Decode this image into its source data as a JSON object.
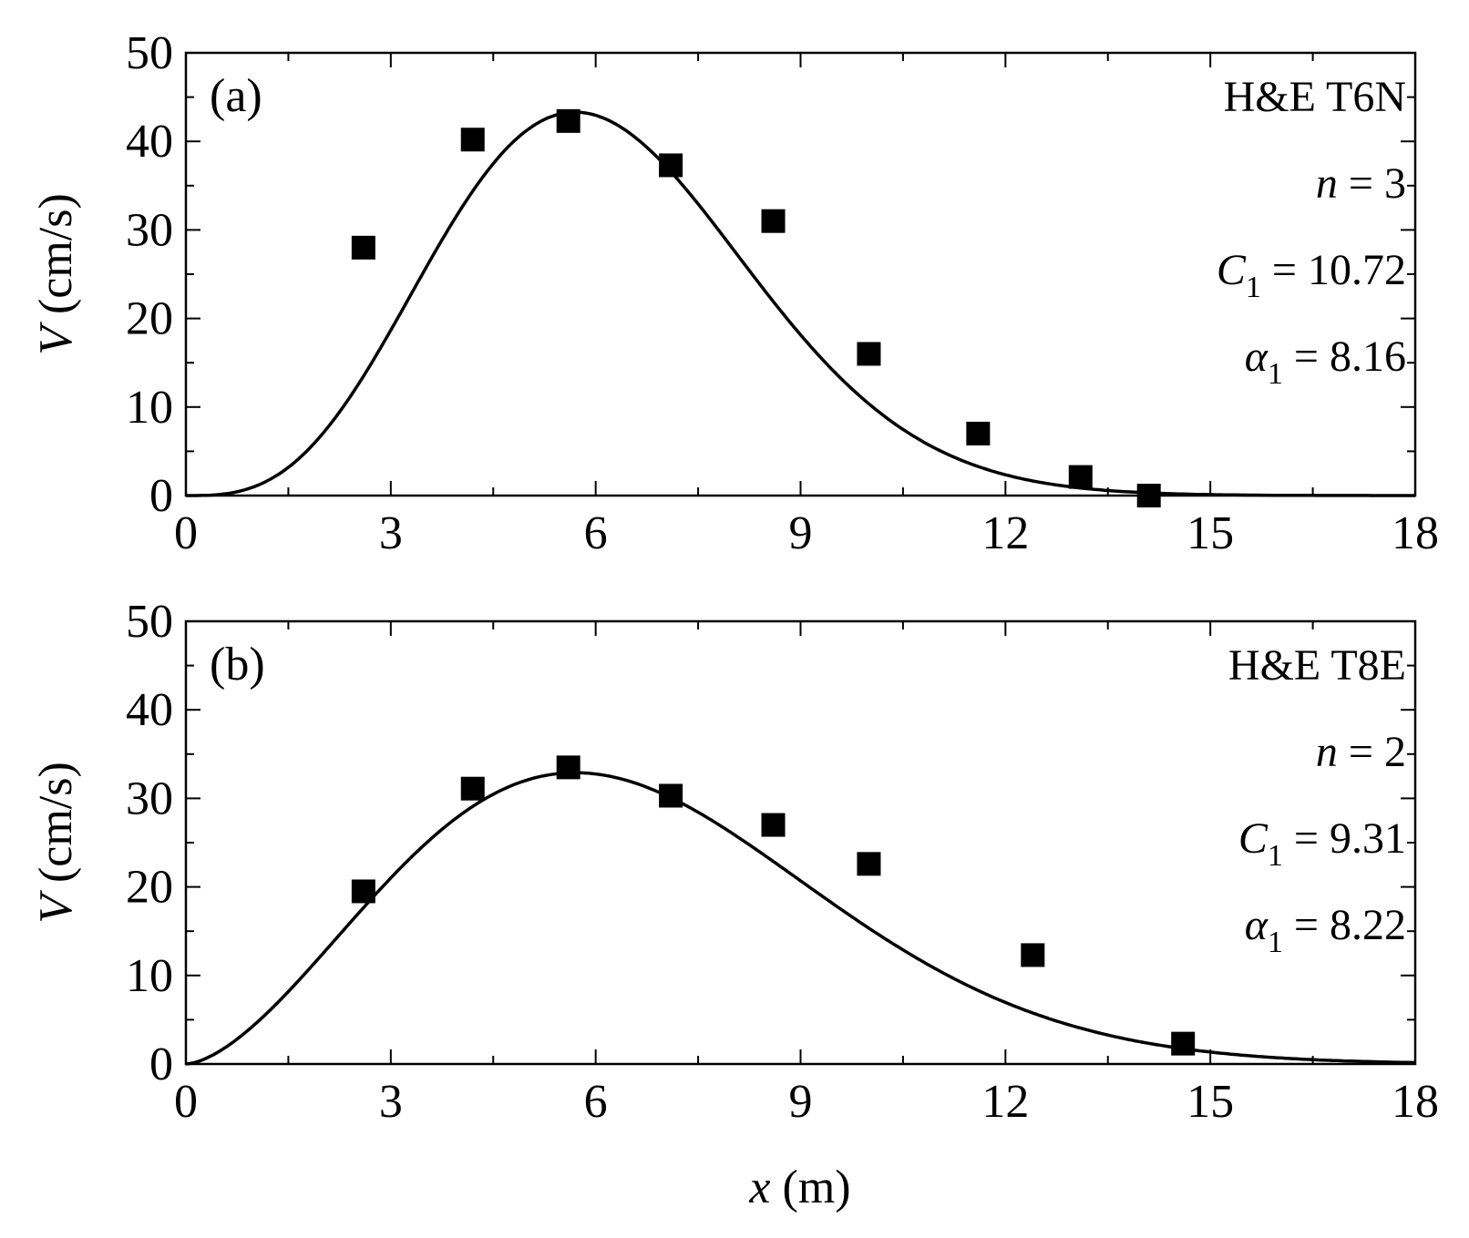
{
  "x_axis_label": {
    "var": "x",
    "unit": " (m)"
  },
  "chart_data": [
    {
      "type": "scatter",
      "panel_label": "(a)",
      "ylabel": {
        "var": "V",
        "unit": " (cm/s)"
      },
      "xlim": [
        0,
        18
      ],
      "ylim": [
        0,
        50
      ],
      "x_ticks": [
        0,
        3,
        6,
        9,
        12,
        15,
        18
      ],
      "y_ticks": [
        0,
        10,
        20,
        30,
        40,
        50
      ],
      "grid": false,
      "annotations": {
        "title": "H&E T6N",
        "n": {
          "var": "n",
          "text": " = 3"
        },
        "c1": {
          "var": "C",
          "sub": "1",
          "text": " = 10.72"
        },
        "alpha1": {
          "var": "α",
          "sub": "1",
          "text": " = 8.16"
        }
      },
      "fit": {
        "n": 3,
        "C1": 10.72,
        "alpha1": 8.16,
        "style": "solid black line"
      },
      "series": [
        {
          "marker": "filled square",
          "x": [
            2.6,
            4.2,
            5.6,
            7.1,
            8.6,
            10.0,
            11.6,
            13.1,
            14.1
          ],
          "y": [
            28,
            40.2,
            42.3,
            37.3,
            31,
            16,
            7,
            2.1,
            0
          ]
        }
      ]
    },
    {
      "type": "scatter",
      "panel_label": "(b)",
      "ylabel": {
        "var": "V",
        "unit": " (cm/s)"
      },
      "xlim": [
        0,
        18
      ],
      "ylim": [
        0,
        50
      ],
      "x_ticks": [
        0,
        3,
        6,
        9,
        12,
        15,
        18
      ],
      "y_ticks": [
        0,
        10,
        20,
        30,
        40,
        50
      ],
      "grid": false,
      "annotations": {
        "title": "H&E T8E",
        "n": {
          "var": "n",
          "text": " = 2"
        },
        "c1": {
          "var": "C",
          "sub": "1",
          "text": " = 9.31"
        },
        "alpha1": {
          "var": "α",
          "sub": "1",
          "text": " = 8.22"
        }
      },
      "fit": {
        "n": 2,
        "C1": 9.31,
        "alpha1": 8.22,
        "style": "solid black line"
      },
      "series": [
        {
          "marker": "filled square",
          "x": [
            2.6,
            4.2,
            5.6,
            7.1,
            8.6,
            10.0,
            12.4,
            14.6
          ],
          "y": [
            19.5,
            31.1,
            33.5,
            30.3,
            27,
            22.6,
            12.3,
            2.3
          ]
        }
      ]
    }
  ]
}
